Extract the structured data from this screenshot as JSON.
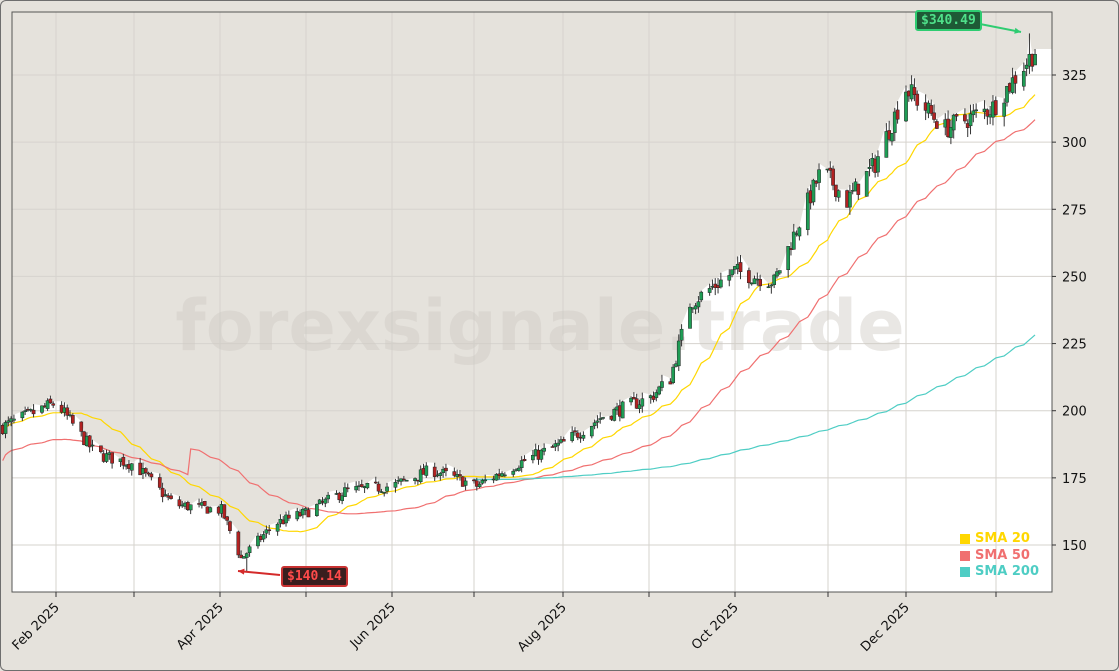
{
  "chart_data": {
    "type": "candlestick",
    "title": "",
    "xlabel": "",
    "ylabel": "",
    "ylim": [
      132,
      348
    ],
    "y_ticks": [
      150,
      175,
      200,
      225,
      250,
      275,
      300,
      325
    ],
    "x_tick_labels": [
      "Feb 2025",
      "Apr 2025",
      "Jun 2025",
      "Aug 2025",
      "Oct 2025",
      "Dec 2025"
    ],
    "grid": true,
    "legend_position": "lower right",
    "watermark": "forexsignale.trade",
    "annotations": [
      {
        "label": "$340.49",
        "type": "max",
        "color": "#2ecc71"
      },
      {
        "label": "$140.14",
        "type": "min",
        "color": "#e03030"
      }
    ],
    "series": [
      {
        "name": "SMA 20",
        "color": "#ffd700"
      },
      {
        "name": "SMA 50",
        "color": "#f07070"
      },
      {
        "name": "SMA 200",
        "color": "#4ecdc4"
      }
    ],
    "close_path_monthly": {
      "x": [
        "2025-01-13",
        "2025-02-01",
        "2025-02-15",
        "2025-03-01",
        "2025-03-15",
        "2025-04-01",
        "2025-04-08",
        "2025-04-20",
        "2025-05-01",
        "2025-05-15",
        "2025-06-01",
        "2025-06-15",
        "2025-07-01",
        "2025-07-15",
        "2025-08-01",
        "2025-08-15",
        "2025-09-01",
        "2025-09-08",
        "2025-09-15",
        "2025-10-01",
        "2025-10-15",
        "2025-11-01",
        "2025-11-10",
        "2025-11-20",
        "2025-12-01",
        "2025-12-15",
        "2026-01-01",
        "2026-01-16"
      ],
      "close": [
        194,
        203,
        184,
        180,
        165,
        163,
        145,
        158,
        162,
        170,
        172,
        178,
        172,
        180,
        188,
        198,
        205,
        212,
        240,
        252,
        248,
        290,
        278,
        292,
        320,
        305,
        313,
        334
      ]
    },
    "sma20_end": 320,
    "sma50_end": 309,
    "sma200_end": 226,
    "high_point": 340.49,
    "low_point": 140.14
  },
  "legend": {
    "items": [
      {
        "label": "SMA 20",
        "color": "#ffd700"
      },
      {
        "label": "SMA 50",
        "color": "#f07070"
      },
      {
        "label": "SMA 200",
        "color": "#4ecdc4"
      }
    ]
  },
  "annotations": {
    "high_label": "$340.49",
    "low_label": "$140.14"
  }
}
